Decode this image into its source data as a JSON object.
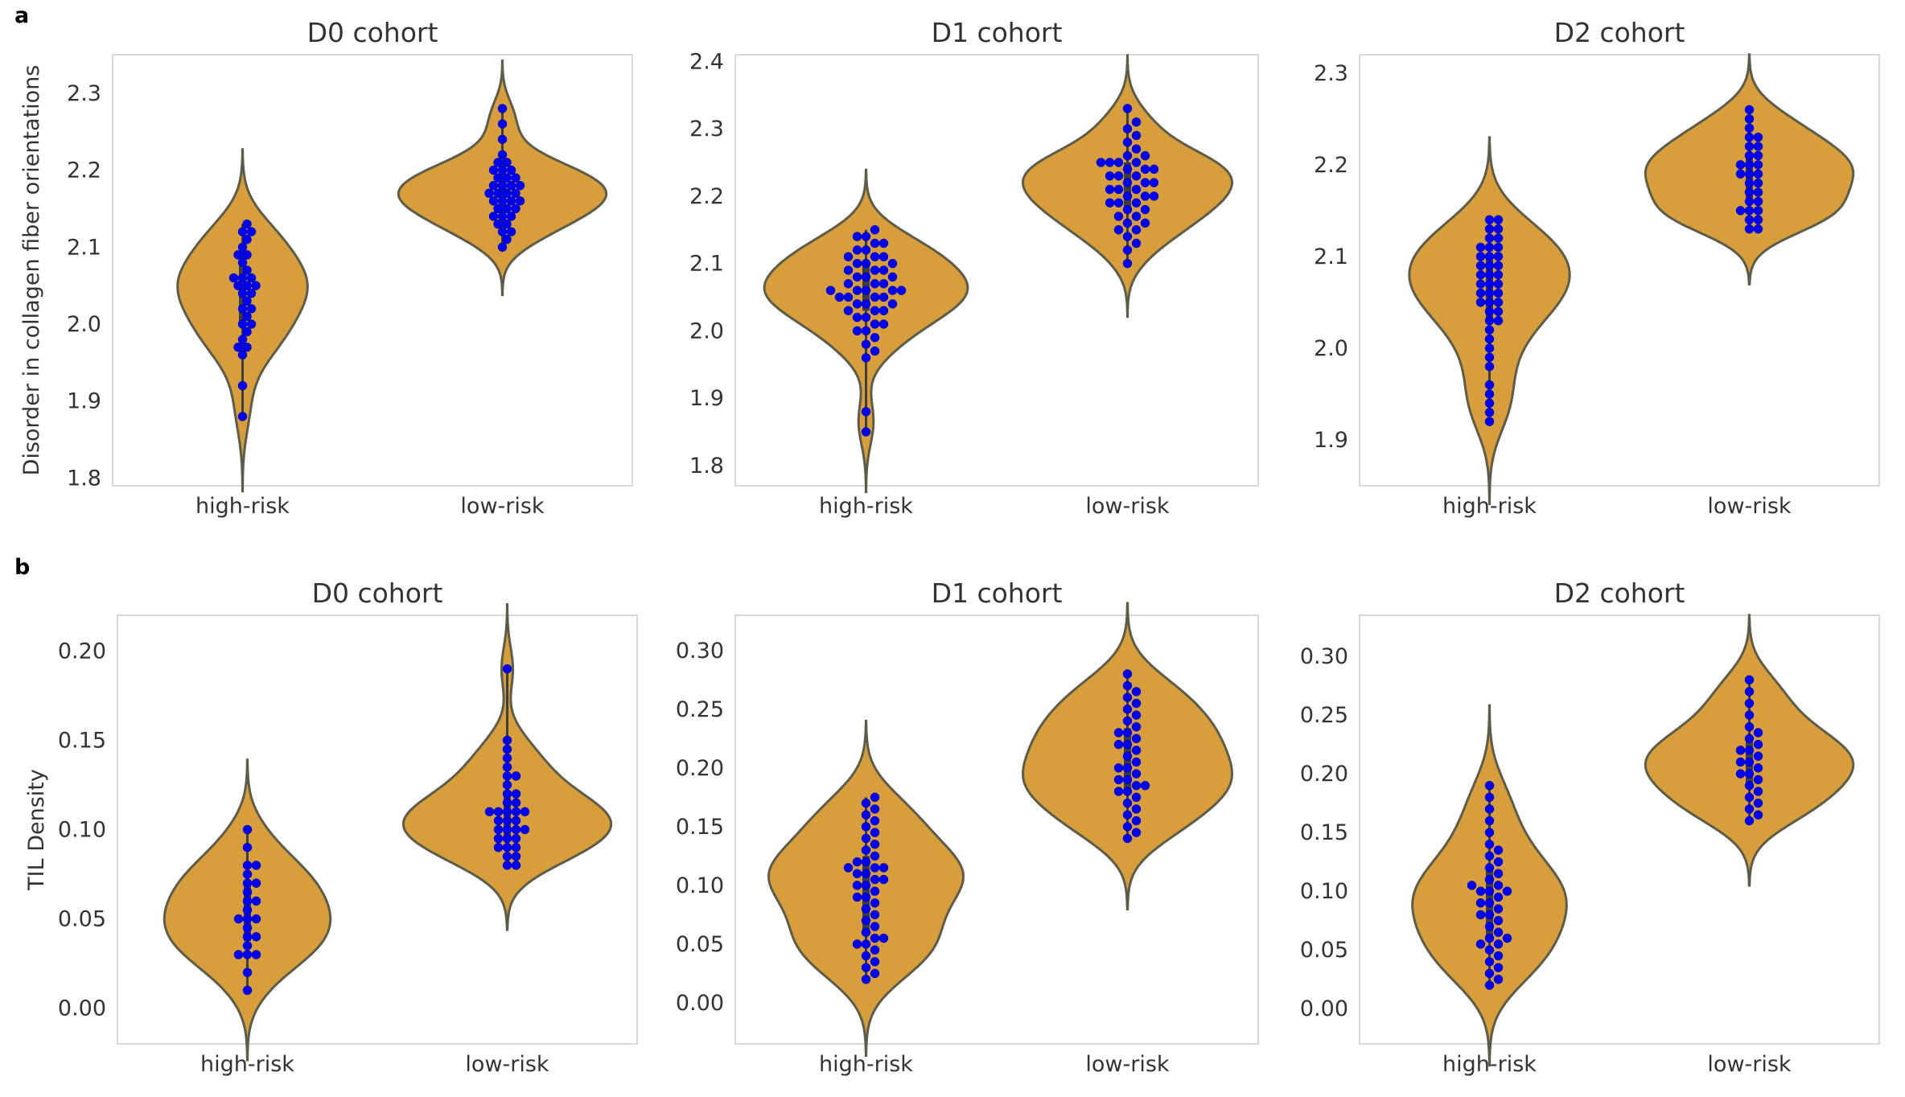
{
  "panel_labels": {
    "a": "a",
    "b": "b"
  },
  "colors": {
    "violin_fill": "#d89e3b",
    "violin_edge": "#5c5c4a",
    "points": "#0000ee",
    "frame": "#cccccc"
  },
  "chart_data": [
    {
      "type": "violin",
      "title": "D0 cohort",
      "ylabel": "Disorder in collagen fiber orientations",
      "categories": [
        "high-risk",
        "low-risk"
      ],
      "ylim": [
        1.79,
        2.35
      ],
      "yticks": [
        1.8,
        1.9,
        2.0,
        2.1,
        2.2,
        2.3
      ],
      "ytick_labels": [
        "1.8",
        "1.9",
        "2.0",
        "2.1",
        "2.2",
        "2.3"
      ],
      "grid": false,
      "series": [
        {
          "category": "high-risk",
          "values": [
            1.88,
            1.92,
            1.96,
            1.97,
            1.97,
            1.98,
            1.99,
            2.0,
            2.0,
            2.01,
            2.02,
            2.02,
            2.03,
            2.04,
            2.04,
            2.05,
            2.05,
            2.05,
            2.06,
            2.06,
            2.06,
            2.07,
            2.08,
            2.09,
            2.09,
            2.1,
            2.11,
            2.12,
            2.12,
            2.13
          ]
        },
        {
          "category": "low-risk",
          "values": [
            2.1,
            2.11,
            2.12,
            2.12,
            2.13,
            2.13,
            2.14,
            2.14,
            2.14,
            2.15,
            2.15,
            2.15,
            2.16,
            2.16,
            2.16,
            2.16,
            2.17,
            2.17,
            2.17,
            2.17,
            2.18,
            2.18,
            2.18,
            2.18,
            2.19,
            2.19,
            2.19,
            2.2,
            2.2,
            2.2,
            2.21,
            2.21,
            2.22,
            2.24,
            2.26,
            2.28
          ]
        }
      ]
    },
    {
      "type": "violin",
      "title": "D1 cohort",
      "ylabel": "",
      "categories": [
        "high-risk",
        "low-risk"
      ],
      "ylim": [
        1.77,
        2.41
      ],
      "yticks": [
        1.8,
        1.9,
        2.0,
        2.1,
        2.2,
        2.3,
        2.4
      ],
      "ytick_labels": [
        "1.8",
        "1.9",
        "2.0",
        "2.1",
        "2.2",
        "2.3",
        "2.4"
      ],
      "grid": false,
      "series": [
        {
          "category": "high-risk",
          "values": [
            1.85,
            1.88,
            1.96,
            1.97,
            1.98,
            1.99,
            2.0,
            2.0,
            2.01,
            2.01,
            2.02,
            2.02,
            2.03,
            2.03,
            2.03,
            2.04,
            2.04,
            2.04,
            2.05,
            2.05,
            2.05,
            2.05,
            2.06,
            2.06,
            2.06,
            2.06,
            2.06,
            2.07,
            2.07,
            2.07,
            2.08,
            2.08,
            2.08,
            2.09,
            2.09,
            2.09,
            2.1,
            2.1,
            2.1,
            2.11,
            2.11,
            2.11,
            2.12,
            2.12,
            2.13,
            2.13,
            2.14,
            2.14,
            2.15
          ]
        },
        {
          "category": "low-risk",
          "values": [
            2.1,
            2.12,
            2.13,
            2.14,
            2.15,
            2.15,
            2.16,
            2.16,
            2.17,
            2.17,
            2.18,
            2.18,
            2.19,
            2.19,
            2.19,
            2.2,
            2.2,
            2.2,
            2.21,
            2.21,
            2.21,
            2.22,
            2.22,
            2.22,
            2.23,
            2.23,
            2.23,
            2.24,
            2.24,
            2.24,
            2.25,
            2.25,
            2.25,
            2.25,
            2.26,
            2.26,
            2.27,
            2.28,
            2.29,
            2.3,
            2.31,
            2.33
          ]
        }
      ]
    },
    {
      "type": "violin",
      "title": "D2 cohort",
      "ylabel": "",
      "categories": [
        "high-risk",
        "low-risk"
      ],
      "ylim": [
        1.85,
        2.32
      ],
      "yticks": [
        1.9,
        2.0,
        2.1,
        2.2,
        2.3
      ],
      "ytick_labels": [
        "1.9",
        "2.0",
        "2.1",
        "2.2",
        "2.3"
      ],
      "grid": false,
      "series": [
        {
          "category": "high-risk",
          "values": [
            1.92,
            1.93,
            1.94,
            1.95,
            1.96,
            1.98,
            1.99,
            2.0,
            2.01,
            2.02,
            2.03,
            2.03,
            2.04,
            2.04,
            2.05,
            2.05,
            2.05,
            2.06,
            2.06,
            2.06,
            2.07,
            2.07,
            2.07,
            2.08,
            2.08,
            2.08,
            2.09,
            2.09,
            2.09,
            2.1,
            2.1,
            2.1,
            2.11,
            2.11,
            2.11,
            2.12,
            2.12,
            2.13,
            2.13,
            2.14,
            2.14
          ]
        },
        {
          "category": "low-risk",
          "values": [
            2.13,
            2.13,
            2.14,
            2.14,
            2.15,
            2.15,
            2.15,
            2.16,
            2.16,
            2.17,
            2.17,
            2.18,
            2.18,
            2.19,
            2.19,
            2.19,
            2.2,
            2.2,
            2.2,
            2.21,
            2.21,
            2.22,
            2.22,
            2.23,
            2.23,
            2.24,
            2.25,
            2.26
          ]
        }
      ]
    },
    {
      "type": "violin",
      "title": "D0 cohort",
      "ylabel": "TIL Density",
      "categories": [
        "high-risk",
        "low-risk"
      ],
      "ylim": [
        -0.02,
        0.22
      ],
      "yticks": [
        0.0,
        0.05,
        0.1,
        0.15,
        0.2
      ],
      "ytick_labels": [
        "0.00",
        "0.05",
        "0.10",
        "0.15",
        "0.20"
      ],
      "grid": false,
      "series": [
        {
          "category": "high-risk",
          "values": [
            0.01,
            0.02,
            0.03,
            0.03,
            0.03,
            0.035,
            0.04,
            0.04,
            0.045,
            0.05,
            0.05,
            0.05,
            0.055,
            0.06,
            0.06,
            0.065,
            0.07,
            0.07,
            0.075,
            0.08,
            0.08,
            0.09,
            0.1
          ]
        },
        {
          "category": "low-risk",
          "values": [
            0.08,
            0.08,
            0.085,
            0.085,
            0.09,
            0.09,
            0.09,
            0.095,
            0.095,
            0.095,
            0.1,
            0.1,
            0.1,
            0.1,
            0.105,
            0.105,
            0.105,
            0.11,
            0.11,
            0.11,
            0.11,
            0.11,
            0.115,
            0.115,
            0.12,
            0.12,
            0.125,
            0.13,
            0.13,
            0.135,
            0.14,
            0.145,
            0.15,
            0.19
          ]
        }
      ]
    },
    {
      "type": "violin",
      "title": "D1 cohort",
      "ylabel": "",
      "categories": [
        "high-risk",
        "low-risk"
      ],
      "ylim": [
        -0.035,
        0.33
      ],
      "yticks": [
        0.0,
        0.05,
        0.1,
        0.15,
        0.2,
        0.25,
        0.3
      ],
      "ytick_labels": [
        "0.00",
        "0.05",
        "0.10",
        "0.15",
        "0.20",
        "0.25",
        "0.30"
      ],
      "grid": false,
      "series": [
        {
          "category": "high-risk",
          "values": [
            0.02,
            0.025,
            0.03,
            0.035,
            0.04,
            0.045,
            0.05,
            0.05,
            0.055,
            0.055,
            0.06,
            0.065,
            0.07,
            0.075,
            0.08,
            0.085,
            0.09,
            0.09,
            0.095,
            0.1,
            0.1,
            0.105,
            0.105,
            0.11,
            0.11,
            0.115,
            0.115,
            0.115,
            0.12,
            0.12,
            0.125,
            0.13,
            0.135,
            0.14,
            0.145,
            0.15,
            0.155,
            0.16,
            0.165,
            0.17,
            0.175
          ]
        },
        {
          "category": "low-risk",
          "values": [
            0.14,
            0.145,
            0.15,
            0.155,
            0.16,
            0.165,
            0.17,
            0.175,
            0.18,
            0.18,
            0.185,
            0.185,
            0.19,
            0.19,
            0.195,
            0.2,
            0.2,
            0.205,
            0.21,
            0.215,
            0.22,
            0.22,
            0.225,
            0.23,
            0.23,
            0.235,
            0.24,
            0.245,
            0.25,
            0.255,
            0.26,
            0.265,
            0.27,
            0.28
          ]
        }
      ]
    },
    {
      "type": "violin",
      "title": "D2 cohort",
      "ylabel": "",
      "categories": [
        "high-risk",
        "low-risk"
      ],
      "ylim": [
        -0.03,
        0.335
      ],
      "yticks": [
        0.0,
        0.05,
        0.1,
        0.15,
        0.2,
        0.25,
        0.3
      ],
      "ytick_labels": [
        "0.00",
        "0.05",
        "0.10",
        "0.15",
        "0.20",
        "0.25",
        "0.30"
      ],
      "grid": false,
      "series": [
        {
          "category": "high-risk",
          "values": [
            0.02,
            0.025,
            0.03,
            0.035,
            0.04,
            0.045,
            0.05,
            0.055,
            0.055,
            0.06,
            0.06,
            0.065,
            0.07,
            0.075,
            0.08,
            0.08,
            0.085,
            0.09,
            0.09,
            0.095,
            0.1,
            0.1,
            0.1,
            0.105,
            0.105,
            0.11,
            0.115,
            0.12,
            0.125,
            0.13,
            0.135,
            0.14,
            0.15,
            0.16,
            0.17,
            0.18,
            0.19
          ]
        },
        {
          "category": "low-risk",
          "values": [
            0.16,
            0.165,
            0.17,
            0.175,
            0.18,
            0.185,
            0.19,
            0.195,
            0.2,
            0.2,
            0.205,
            0.21,
            0.21,
            0.215,
            0.22,
            0.22,
            0.225,
            0.23,
            0.235,
            0.24,
            0.25,
            0.26,
            0.27,
            0.28
          ]
        }
      ]
    }
  ]
}
